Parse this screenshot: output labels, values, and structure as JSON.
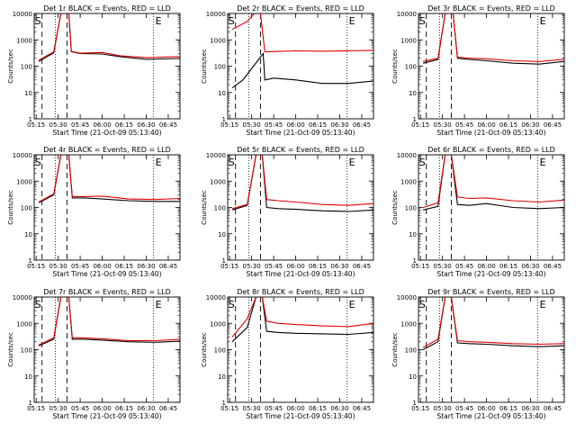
{
  "colors": {
    "events": "#000000",
    "lld": "#e00000",
    "axes": "#000000",
    "background": "#ffffff"
  },
  "common": {
    "xlabel": "Start Time (21-Oct-09 05:13:40)",
    "ylabel": "Counts/sec",
    "x_ticks": [
      "05:15",
      "05:30",
      "05:45",
      "06:00",
      "06:15",
      "06:30",
      "06:45"
    ],
    "y_ticks": [
      "1",
      "10",
      "100",
      "1000",
      "10000"
    ],
    "xlim": [
      "05:13:40",
      "06:53"
    ],
    "ylim": [
      1,
      10000
    ],
    "yscale": "log",
    "dotted_vlines": [
      "05:28",
      "06:35"
    ],
    "dashed_vlines": [
      "05:19",
      "05:36"
    ],
    "marker_labels": {
      "left": "S",
      "right": "E"
    }
  },
  "chart_data": [
    {
      "type": "line",
      "title": "Det 1r BLACK = Events, RED = LLD",
      "series": [
        {
          "name": "Events",
          "values": [
            [
              5.28,
              150
            ],
            [
              5.45,
              320
            ],
            [
              5.53,
              10000
            ],
            [
              5.62,
              10000
            ],
            [
              5.65,
              350
            ],
            [
              5.75,
              300
            ],
            [
              6.0,
              290
            ],
            [
              6.2,
              230
            ],
            [
              6.5,
              180
            ],
            [
              6.88,
              195
            ]
          ]
        },
        {
          "name": "LLD",
          "values": [
            [
              5.28,
              170
            ],
            [
              5.45,
              350
            ],
            [
              5.53,
              10000
            ],
            [
              5.62,
              10000
            ],
            [
              5.65,
              360
            ],
            [
              5.75,
              310
            ],
            [
              6.0,
              330
            ],
            [
              6.2,
              250
            ],
            [
              6.5,
              210
            ],
            [
              6.88,
              230
            ]
          ]
        }
      ]
    },
    {
      "type": "line",
      "title": "Det 2r BLACK = Events, RED = LLD",
      "series": [
        {
          "name": "Events",
          "values": [
            [
              5.28,
              15
            ],
            [
              5.4,
              30
            ],
            [
              5.63,
              300
            ],
            [
              5.65,
              30
            ],
            [
              5.75,
              35
            ],
            [
              6.0,
              30
            ],
            [
              6.3,
              22
            ],
            [
              6.6,
              22
            ],
            [
              6.88,
              27
            ]
          ]
        },
        {
          "name": "LLD",
          "values": [
            [
              5.28,
              2500
            ],
            [
              5.45,
              5000
            ],
            [
              5.53,
              10000
            ],
            [
              5.6,
              10000
            ],
            [
              5.65,
              350
            ],
            [
              5.8,
              360
            ],
            [
              6.0,
              380
            ],
            [
              6.3,
              370
            ],
            [
              6.6,
              380
            ],
            [
              6.88,
              400
            ]
          ]
        }
      ]
    },
    {
      "type": "line",
      "title": "Det 3r BLACK = Events, RED = LLD",
      "series": [
        {
          "name": "Events",
          "values": [
            [
              5.28,
              130
            ],
            [
              5.45,
              180
            ],
            [
              5.53,
              10000
            ],
            [
              5.62,
              10000
            ],
            [
              5.67,
              200
            ],
            [
              5.8,
              180
            ],
            [
              6.0,
              160
            ],
            [
              6.3,
              130
            ],
            [
              6.6,
              120
            ],
            [
              6.88,
              150
            ]
          ]
        },
        {
          "name": "LLD",
          "values": [
            [
              5.28,
              150
            ],
            [
              5.45,
              200
            ],
            [
              5.53,
              10000
            ],
            [
              5.62,
              10000
            ],
            [
              5.67,
              220
            ],
            [
              5.8,
              200
            ],
            [
              6.0,
              190
            ],
            [
              6.3,
              160
            ],
            [
              6.6,
              150
            ],
            [
              6.88,
              180
            ]
          ]
        }
      ]
    },
    {
      "type": "line",
      "title": "Det 4r BLACK = Events, RED = LLD",
      "series": [
        {
          "name": "Events",
          "values": [
            [
              5.28,
              150
            ],
            [
              5.45,
              300
            ],
            [
              5.53,
              10000
            ],
            [
              5.62,
              10000
            ],
            [
              5.66,
              230
            ],
            [
              5.8,
              230
            ],
            [
              6.0,
              210
            ],
            [
              6.3,
              180
            ],
            [
              6.6,
              170
            ],
            [
              6.88,
              170
            ]
          ]
        },
        {
          "name": "LLD",
          "values": [
            [
              5.28,
              160
            ],
            [
              5.45,
              330
            ],
            [
              5.53,
              10000
            ],
            [
              5.62,
              10000
            ],
            [
              5.66,
              260
            ],
            [
              5.8,
              260
            ],
            [
              6.0,
              270
            ],
            [
              6.3,
              210
            ],
            [
              6.6,
              200
            ],
            [
              6.88,
              220
            ]
          ]
        }
      ]
    },
    {
      "type": "line",
      "title": "Det 5r BLACK = Events, RED = LLD",
      "series": [
        {
          "name": "Events",
          "values": [
            [
              5.28,
              80
            ],
            [
              5.45,
              120
            ],
            [
              5.55,
              10000
            ],
            [
              5.62,
              10000
            ],
            [
              5.67,
              100
            ],
            [
              5.8,
              90
            ],
            [
              6.0,
              85
            ],
            [
              6.3,
              75
            ],
            [
              6.6,
              70
            ],
            [
              6.88,
              80
            ]
          ]
        },
        {
          "name": "LLD",
          "values": [
            [
              5.28,
              90
            ],
            [
              5.45,
              130
            ],
            [
              5.55,
              10000
            ],
            [
              5.62,
              10000
            ],
            [
              5.67,
              200
            ],
            [
              5.8,
              180
            ],
            [
              6.0,
              160
            ],
            [
              6.3,
              130
            ],
            [
              6.6,
              120
            ],
            [
              6.88,
              140
            ]
          ]
        }
      ]
    },
    {
      "type": "line",
      "title": "Det 6r BLACK = Events, RED = LLD",
      "series": [
        {
          "name": "Events",
          "values": [
            [
              5.28,
              80
            ],
            [
              5.45,
              110
            ],
            [
              5.53,
              10000
            ],
            [
              5.6,
              10000
            ],
            [
              5.67,
              130
            ],
            [
              5.8,
              120
            ],
            [
              6.0,
              140
            ],
            [
              6.3,
              100
            ],
            [
              6.6,
              90
            ],
            [
              6.88,
              100
            ]
          ]
        },
        {
          "name": "LLD",
          "values": [
            [
              5.28,
              100
            ],
            [
              5.45,
              150
            ],
            [
              5.53,
              10000
            ],
            [
              5.6,
              10000
            ],
            [
              5.67,
              250
            ],
            [
              5.8,
              220
            ],
            [
              6.0,
              230
            ],
            [
              6.3,
              180
            ],
            [
              6.6,
              160
            ],
            [
              6.88,
              190
            ]
          ]
        }
      ]
    },
    {
      "type": "line",
      "title": "Det 7r BLACK = Events, RED = LLD",
      "series": [
        {
          "name": "Events",
          "values": [
            [
              5.28,
              140
            ],
            [
              5.45,
              250
            ],
            [
              5.53,
              10000
            ],
            [
              5.62,
              10000
            ],
            [
              5.66,
              250
            ],
            [
              5.8,
              250
            ],
            [
              6.0,
              230
            ],
            [
              6.3,
              200
            ],
            [
              6.6,
              190
            ],
            [
              6.88,
              210
            ]
          ]
        },
        {
          "name": "LLD",
          "values": [
            [
              5.28,
              150
            ],
            [
              5.45,
              280
            ],
            [
              5.53,
              10000
            ],
            [
              5.62,
              10000
            ],
            [
              5.66,
              280
            ],
            [
              5.8,
              280
            ],
            [
              6.0,
              260
            ],
            [
              6.3,
              220
            ],
            [
              6.6,
              220
            ],
            [
              6.88,
              250
            ]
          ]
        }
      ]
    },
    {
      "type": "line",
      "title": "Det 8r BLACK = Events, RED = LLD",
      "series": [
        {
          "name": "Events",
          "values": [
            [
              5.28,
              200
            ],
            [
              5.45,
              700
            ],
            [
              5.55,
              10000
            ],
            [
              5.62,
              10000
            ],
            [
              5.67,
              500
            ],
            [
              5.8,
              450
            ],
            [
              6.0,
              420
            ],
            [
              6.3,
              400
            ],
            [
              6.6,
              380
            ],
            [
              6.88,
              450
            ]
          ]
        },
        {
          "name": "LLD",
          "values": [
            [
              5.28,
              300
            ],
            [
              5.45,
              1500
            ],
            [
              5.55,
              10000
            ],
            [
              5.62,
              10000
            ],
            [
              5.67,
              1200
            ],
            [
              5.8,
              1000
            ],
            [
              6.0,
              900
            ],
            [
              6.3,
              800
            ],
            [
              6.6,
              750
            ],
            [
              6.88,
              1000
            ]
          ]
        }
      ]
    },
    {
      "type": "line",
      "title": "Det 9r BLACK = Events, RED = LLD",
      "series": [
        {
          "name": "Events",
          "values": [
            [
              5.28,
              100
            ],
            [
              5.45,
              200
            ],
            [
              5.53,
              10000
            ],
            [
              5.6,
              10000
            ],
            [
              5.67,
              180
            ],
            [
              5.8,
              170
            ],
            [
              6.0,
              160
            ],
            [
              6.3,
              140
            ],
            [
              6.6,
              130
            ],
            [
              6.88,
              140
            ]
          ]
        },
        {
          "name": "LLD",
          "values": [
            [
              5.28,
              120
            ],
            [
              5.45,
              250
            ],
            [
              5.53,
              10000
            ],
            [
              5.6,
              10000
            ],
            [
              5.67,
              220
            ],
            [
              5.8,
              200
            ],
            [
              6.0,
              190
            ],
            [
              6.3,
              170
            ],
            [
              6.6,
              160
            ],
            [
              6.88,
              170
            ]
          ]
        }
      ]
    }
  ]
}
